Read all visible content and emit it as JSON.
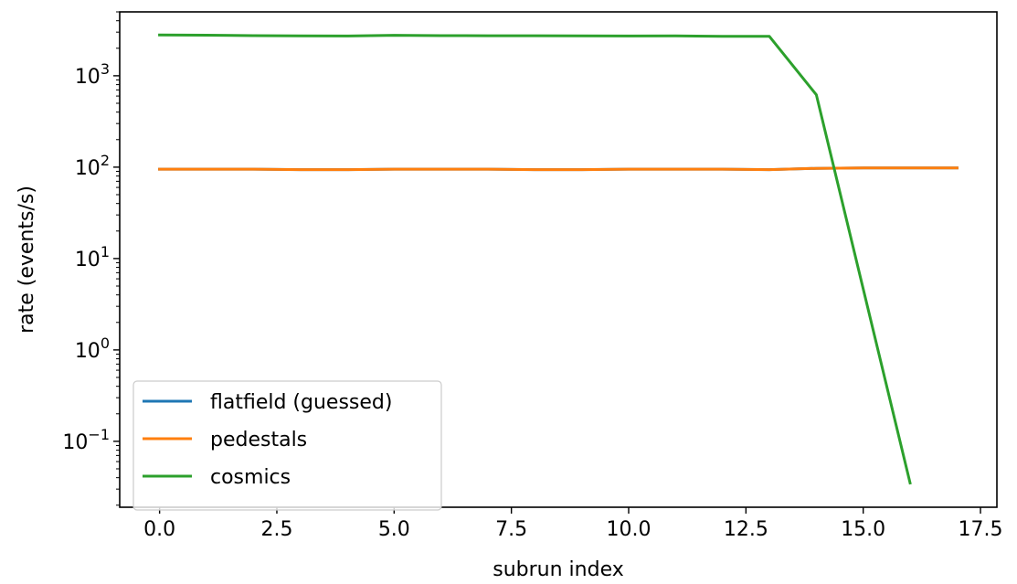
{
  "chart_data": {
    "type": "line",
    "xlabel": "subrun index",
    "ylabel": "rate (events/s)",
    "yscale": "log",
    "xlim": [
      -0.85,
      17.85
    ],
    "ylim": [
      0.019,
      5000
    ],
    "x_ticks": [
      0.0,
      2.5,
      5.0,
      7.5,
      10.0,
      12.5,
      15.0,
      17.5
    ],
    "x_tick_labels": [
      "0.0",
      "2.5",
      "5.0",
      "7.5",
      "10.0",
      "12.5",
      "15.0",
      "17.5"
    ],
    "y_ticks": [
      0.1,
      1,
      10,
      100,
      1000
    ],
    "y_tick_labels": [
      {
        "base": "10",
        "exp": "−1"
      },
      {
        "base": "10",
        "exp": "0"
      },
      {
        "base": "10",
        "exp": "1"
      },
      {
        "base": "10",
        "exp": "2"
      },
      {
        "base": "10",
        "exp": "3"
      }
    ],
    "grid": false,
    "legend_position": "lower-left",
    "series": [
      {
        "name": "flatfield (guessed)",
        "color": "#1f77b4",
        "x": [
          0,
          1,
          2,
          3,
          4,
          5,
          6,
          7,
          8,
          9,
          10,
          11,
          12,
          13,
          14,
          15,
          16,
          17
        ],
        "values": [
          95,
          95,
          95,
          94,
          94,
          95,
          95,
          95,
          94,
          94,
          95,
          95,
          95,
          94,
          97,
          98,
          98,
          98
        ]
      },
      {
        "name": "pedestals",
        "color": "#ff7f0e",
        "x": [
          0,
          1,
          2,
          3,
          4,
          5,
          6,
          7,
          8,
          9,
          10,
          11,
          12,
          13,
          14,
          15,
          16,
          17
        ],
        "values": [
          95,
          95,
          95,
          94,
          94,
          95,
          95,
          95,
          94,
          94,
          95,
          95,
          95,
          94,
          97,
          98,
          98,
          98
        ]
      },
      {
        "name": "cosmics",
        "color": "#2ca02c",
        "x": [
          0,
          1,
          2,
          3,
          4,
          5,
          6,
          7,
          8,
          9,
          10,
          11,
          12,
          13,
          14,
          16
        ],
        "values": [
          2800,
          2780,
          2750,
          2730,
          2720,
          2770,
          2750,
          2740,
          2740,
          2730,
          2720,
          2730,
          2700,
          2700,
          620,
          0.035
        ]
      }
    ]
  }
}
